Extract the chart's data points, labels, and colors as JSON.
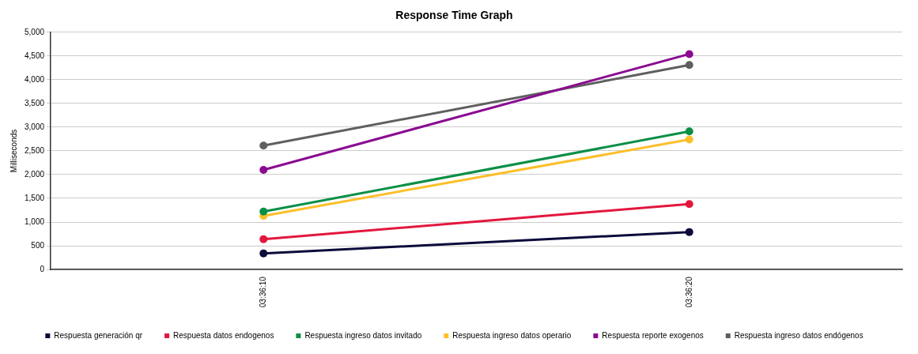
{
  "chart_data": {
    "type": "line",
    "title": "Response Time Graph",
    "ylabel": "Milliseconds",
    "categories": [
      "03:36:10",
      "03:36:20"
    ],
    "series": [
      {
        "name": "Respuesta generación qr",
        "color": "#0b0a3b",
        "values": [
          340,
          790
        ]
      },
      {
        "name": "Respuesta datos endogenos",
        "color": "#e3173e",
        "values": [
          640,
          1380
        ]
      },
      {
        "name": "Respuesta ingreso datos invitado",
        "color": "#0a8f46",
        "values": [
          1220,
          2910
        ]
      },
      {
        "name": "Respuesta ingreso datos operario",
        "color": "#fcbf2a",
        "values": [
          1130,
          2740
        ]
      },
      {
        "name": "Respuesta reporte exogenos",
        "color": "#8a0b91",
        "values": [
          2100,
          4540
        ]
      },
      {
        "name": "Respuesta ingreso datos endógenos",
        "color": "#5f5f5f",
        "values": [
          2610,
          4310
        ]
      }
    ],
    "ylim": [
      0,
      5000
    ],
    "yticks": [
      {
        "value": 0,
        "label": "0"
      },
      {
        "value": 500,
        "label": "500"
      },
      {
        "value": 1000,
        "label": "1,000"
      },
      {
        "value": 1500,
        "label": "1,500"
      },
      {
        "value": 2000,
        "label": "2,000"
      },
      {
        "value": 2500,
        "label": "2,500"
      },
      {
        "value": 3000,
        "label": "3,000"
      },
      {
        "value": 3500,
        "label": "3,500"
      },
      {
        "value": 4000,
        "label": "4,000"
      },
      {
        "value": 4500,
        "label": "4,500"
      },
      {
        "value": 5000,
        "label": "5,000"
      }
    ],
    "grid": "y",
    "legend": "bottom",
    "marker": "circle",
    "line_style": "solid"
  }
}
